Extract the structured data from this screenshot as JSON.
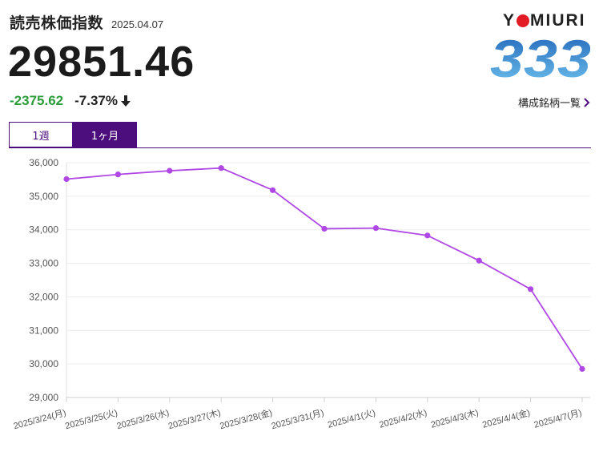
{
  "header": {
    "title": "読売株価指数",
    "date": "2025.04.07",
    "price": "29851.46",
    "change_abs": "-2375.62",
    "change_pct": "-7.37%"
  },
  "logo": {
    "text_before": "Y",
    "text_after": "MIURI",
    "number": "333"
  },
  "components_link": {
    "label": "構成銘柄一覧"
  },
  "tabs": [
    {
      "label": "1週",
      "active": false
    },
    {
      "label": "1ヶ月",
      "active": true
    }
  ],
  "colors": {
    "accent": "#4b0e7c",
    "line": "#b048e6",
    "up_green": "#2a9d3a",
    "logo_red": "#e21b25",
    "logo_blue": "#2a8bd6"
  },
  "chart_data": {
    "type": "line",
    "categories": [
      "2025/3/24(月)",
      "2025/3/25(火)",
      "2025/3/26(水)",
      "2025/3/27(木)",
      "2025/3/28(金)",
      "2025/3/31(月)",
      "2025/4/1(火)",
      "2025/4/2(水)",
      "2025/4/3(木)",
      "2025/4/4(金)",
      "2025/4/7(月)"
    ],
    "values": [
      35510,
      35650,
      35760,
      35840,
      35180,
      34030,
      34050,
      33830,
      33080,
      32230,
      29851.46
    ],
    "yticks": [
      "36,000",
      "35,000",
      "34,000",
      "33,000",
      "32,000",
      "31,000",
      "30,000",
      "29,000"
    ],
    "ylim": [
      29000,
      36000
    ],
    "grid": true
  }
}
